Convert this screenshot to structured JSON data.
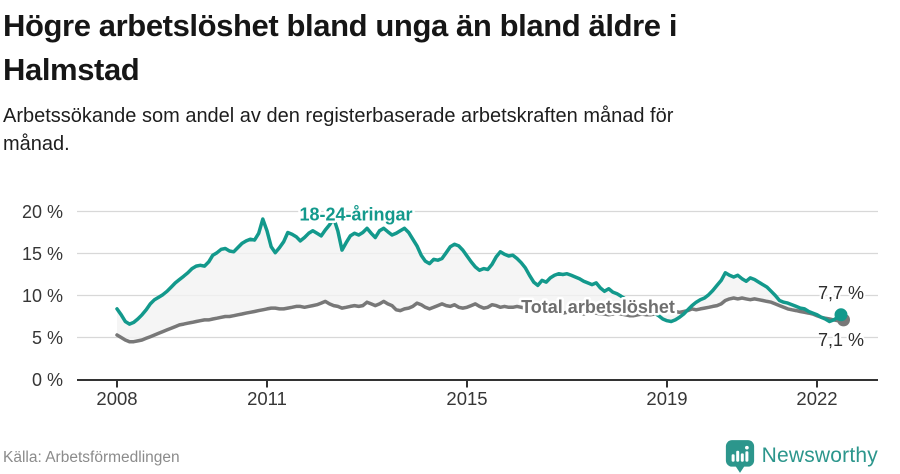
{
  "header": {
    "title_line1": "Högre arbetslöshet bland unga än bland äldre i",
    "title_line2": "Halmstad",
    "subtitle_line1": "Arbetssökande som andel av den registerbaserade arbetskraften månad för",
    "subtitle_line2": "månad."
  },
  "footer": {
    "source": "Källa: Arbetsförmedlingen",
    "brand": "Newsworthy"
  },
  "colors": {
    "youth_line": "#13998c",
    "total_line": "#787878",
    "total_label": "#6f6f6f",
    "band_fill": "#f2f3f2",
    "grid": "#d8d8d8",
    "axis": "#333333",
    "tick_label": "#363636",
    "value_label": "#2e2e2e",
    "logo": "#2c968c"
  },
  "chart_data": {
    "type": "line",
    "title": "Högre arbetslöshet bland unga än bland äldre i Halmstad",
    "x_unit": "month",
    "x_start": "2008-01",
    "x_end": "2022-07",
    "grid": "horizontal",
    "ylim": [
      0,
      21
    ],
    "y_ticks": [
      {
        "value": 0,
        "label": "0 %"
      },
      {
        "value": 5,
        "label": "5 %"
      },
      {
        "value": 10,
        "label": "10 %"
      },
      {
        "value": 15,
        "label": "15 %"
      },
      {
        "value": 20,
        "label": "20 %"
      }
    ],
    "x_ticks": [
      {
        "year": 2008,
        "label": "2008"
      },
      {
        "year": 2011,
        "label": "2011"
      },
      {
        "year": 2015,
        "label": "2015"
      },
      {
        "year": 2019,
        "label": "2019"
      },
      {
        "year": 2022,
        "label": "2022"
      }
    ],
    "series": [
      {
        "id": "youth",
        "name": "18-24-åringar",
        "end_label": "7,7 %",
        "label_anchor": {
          "year": 2012.78,
          "value": 18.9
        },
        "values": [
          8.4,
          7.7,
          6.9,
          6.6,
          6.8,
          7.2,
          7.7,
          8.3,
          9.0,
          9.5,
          9.8,
          10.1,
          10.5,
          11.0,
          11.5,
          11.9,
          12.3,
          12.7,
          13.2,
          13.5,
          13.6,
          13.5,
          14.0,
          14.8,
          15.1,
          15.5,
          15.6,
          15.3,
          15.2,
          15.7,
          16.2,
          16.5,
          16.7,
          16.6,
          17.4,
          19.1,
          17.7,
          15.8,
          15.1,
          15.7,
          16.4,
          17.5,
          17.3,
          17.0,
          16.5,
          16.9,
          17.4,
          17.7,
          17.4,
          17.1,
          17.8,
          18.4,
          19.2,
          17.7,
          15.4,
          16.3,
          17.1,
          17.4,
          17.2,
          17.5,
          18.0,
          17.4,
          16.9,
          17.7,
          18.0,
          17.6,
          17.2,
          17.4,
          17.7,
          18.0,
          17.5,
          16.7,
          15.9,
          14.8,
          14.1,
          13.8,
          14.3,
          14.2,
          14.4,
          15.1,
          15.8,
          16.1,
          15.9,
          15.4,
          14.7,
          14.0,
          13.4,
          13.0,
          13.2,
          13.1,
          13.7,
          14.6,
          15.2,
          14.9,
          14.7,
          14.8,
          14.4,
          13.9,
          13.3,
          12.4,
          11.6,
          11.2,
          11.8,
          11.6,
          12.1,
          12.4,
          12.6,
          12.5,
          12.6,
          12.4,
          12.2,
          12.0,
          11.7,
          11.5,
          11.3,
          11.5,
          10.9,
          10.5,
          10.8,
          10.4,
          10.2,
          9.9,
          9.6,
          9.3,
          9.0,
          8.8,
          8.6,
          8.4,
          8.2,
          7.9,
          7.6,
          7.2,
          7.0,
          6.9,
          7.1,
          7.4,
          7.8,
          8.3,
          8.8,
          9.2,
          9.5,
          9.7,
          10.1,
          10.6,
          11.2,
          11.8,
          12.7,
          12.4,
          12.2,
          12.4,
          12.0,
          11.7,
          12.1,
          11.9,
          11.6,
          11.3,
          11.0,
          10.5,
          10.0,
          9.4,
          9.2,
          9.1,
          8.9,
          8.7,
          8.5,
          8.4,
          8.1,
          7.9,
          7.7,
          7.4,
          7.2,
          6.9,
          7.1,
          7.4,
          7.7
        ]
      },
      {
        "id": "total",
        "name": "Total arbetslöshet",
        "end_label": "7,1 %",
        "label_anchor": {
          "year": 2017.62,
          "value": 7.92
        },
        "values": [
          5.3,
          5.0,
          4.7,
          4.5,
          4.5,
          4.6,
          4.7,
          4.9,
          5.1,
          5.3,
          5.5,
          5.7,
          5.9,
          6.1,
          6.3,
          6.5,
          6.6,
          6.7,
          6.8,
          6.9,
          7.0,
          7.1,
          7.1,
          7.2,
          7.3,
          7.4,
          7.5,
          7.5,
          7.6,
          7.7,
          7.8,
          7.9,
          8.0,
          8.1,
          8.2,
          8.3,
          8.4,
          8.5,
          8.5,
          8.4,
          8.4,
          8.5,
          8.6,
          8.7,
          8.7,
          8.6,
          8.7,
          8.8,
          8.9,
          9.1,
          9.3,
          9.0,
          8.8,
          8.7,
          8.5,
          8.6,
          8.7,
          8.8,
          8.7,
          8.8,
          9.2,
          9.0,
          8.8,
          9.0,
          9.3,
          9.0,
          8.8,
          8.3,
          8.2,
          8.4,
          8.5,
          8.7,
          9.1,
          8.9,
          8.6,
          8.4,
          8.6,
          8.8,
          9.0,
          8.8,
          8.7,
          8.9,
          8.6,
          8.5,
          8.6,
          8.8,
          9.0,
          8.7,
          8.5,
          8.6,
          8.9,
          8.8,
          8.6,
          8.7,
          8.6,
          8.6,
          8.7,
          8.6,
          8.5,
          8.4,
          8.3,
          8.2,
          8.3,
          8.2,
          8.1,
          8.0,
          7.9,
          7.9,
          8.0,
          8.1,
          8.0,
          7.9,
          7.8,
          7.9,
          8.0,
          7.9,
          7.8,
          7.8,
          7.7,
          7.8,
          7.9,
          7.8,
          7.7,
          7.6,
          7.6,
          7.7,
          7.8,
          7.7,
          7.7,
          7.8,
          7.9,
          8.0,
          8.1,
          8.2,
          8.1,
          8.0,
          8.1,
          8.2,
          8.4,
          8.3,
          8.4,
          8.5,
          8.6,
          8.7,
          8.8,
          9.0,
          9.4,
          9.6,
          9.7,
          9.6,
          9.7,
          9.6,
          9.5,
          9.6,
          9.5,
          9.4,
          9.3,
          9.2,
          9.0,
          8.8,
          8.6,
          8.4,
          8.3,
          8.2,
          8.1,
          8.0,
          7.9,
          7.8,
          7.6,
          7.4,
          7.3,
          7.2,
          7.1,
          7.0,
          7.1
        ]
      }
    ]
  }
}
